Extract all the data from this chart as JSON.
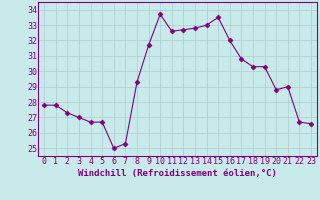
{
  "x": [
    0,
    1,
    2,
    3,
    4,
    5,
    6,
    7,
    8,
    9,
    10,
    11,
    12,
    13,
    14,
    15,
    16,
    17,
    18,
    19,
    20,
    21,
    22,
    23
  ],
  "y": [
    27.8,
    27.8,
    27.3,
    27.0,
    26.7,
    26.7,
    25.0,
    25.3,
    29.3,
    31.7,
    33.7,
    32.6,
    32.7,
    32.8,
    33.0,
    33.5,
    32.0,
    30.8,
    30.3,
    30.3,
    28.8,
    29.0,
    26.7,
    26.6
  ],
  "line_color": "#800080",
  "marker": "D",
  "marker_size": 2.5,
  "bg_color": "#c8eaea",
  "grid_color": "#aacccc",
  "xlabel": "Windchill (Refroidissement éolien,°C)",
  "ylabel": "",
  "ylim": [
    24.5,
    34.5
  ],
  "yticks": [
    25,
    26,
    27,
    28,
    29,
    30,
    31,
    32,
    33,
    34
  ],
  "xticks": [
    0,
    1,
    2,
    3,
    4,
    5,
    6,
    7,
    8,
    9,
    10,
    11,
    12,
    13,
    14,
    15,
    16,
    17,
    18,
    19,
    20,
    21,
    22,
    23
  ],
  "axis_color": "#800080",
  "tick_label_color": "#800080",
  "xlabel_color": "#800080",
  "font_family": "monospace",
  "xlabel_fontsize": 6.5,
  "tick_fontsize": 6.0
}
